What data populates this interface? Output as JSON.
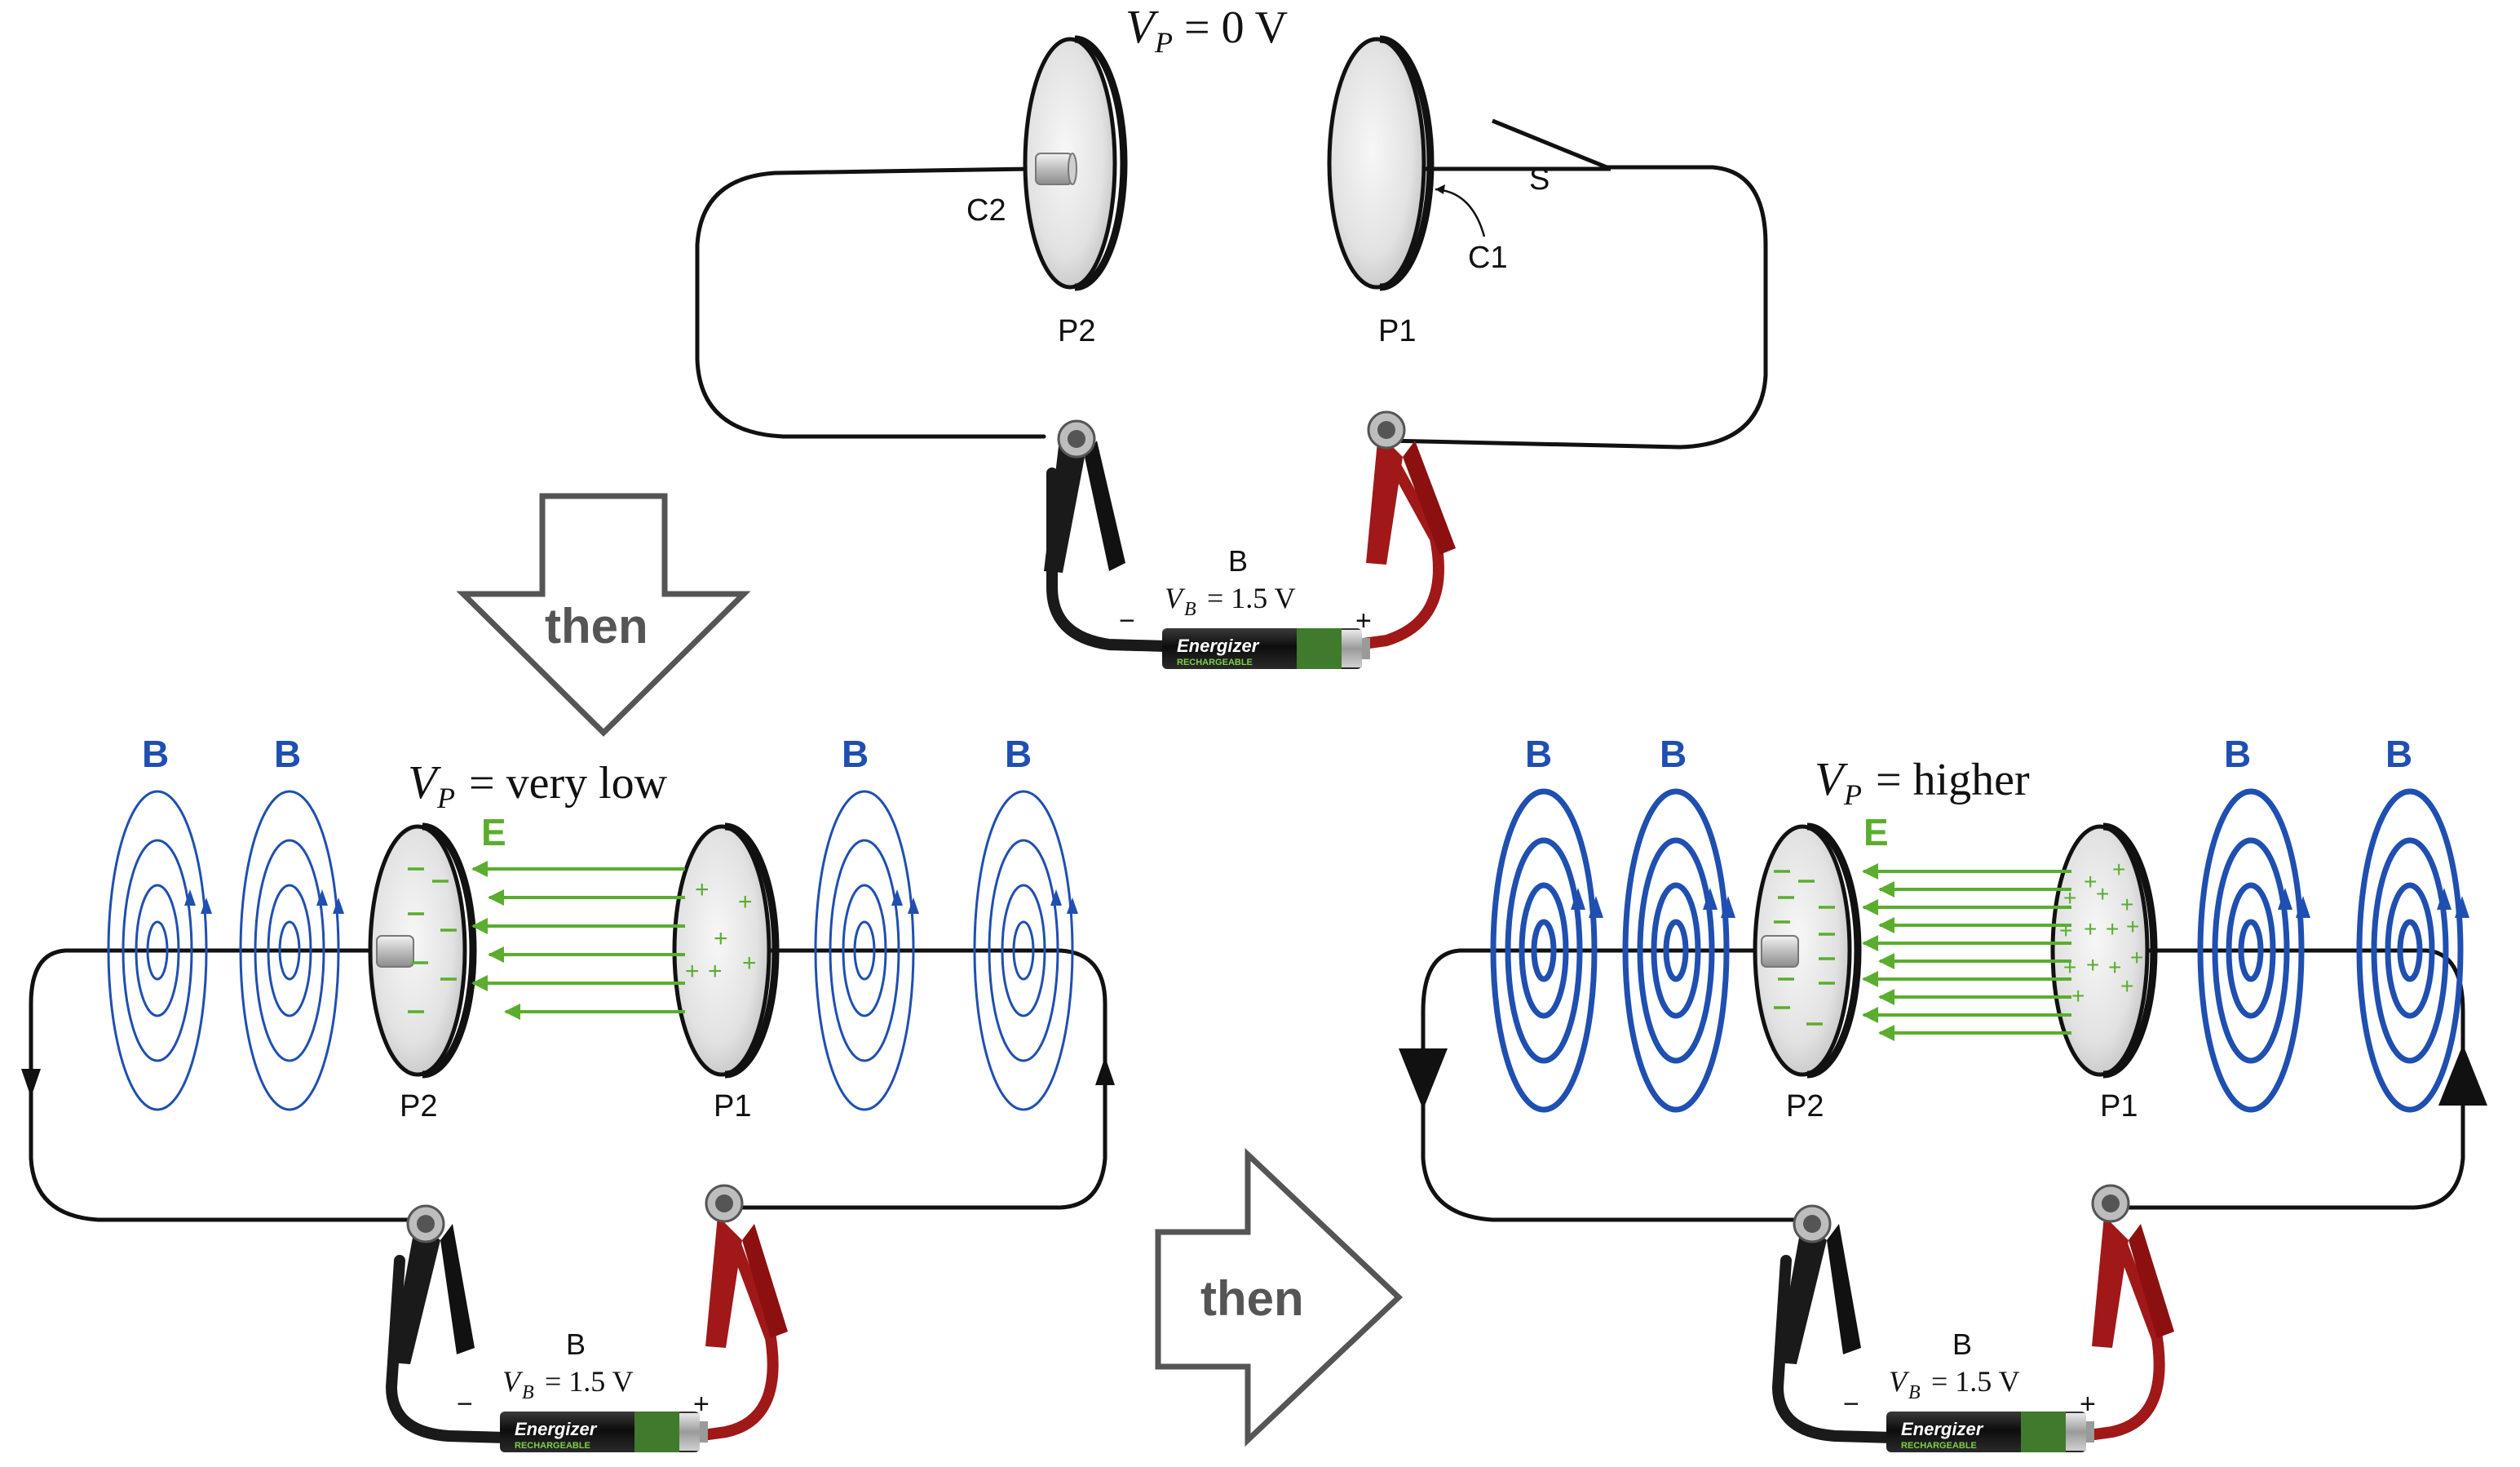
{
  "colors": {
    "field_e": "#5aad2e",
    "field_b": "#1f4fb0",
    "plate_fill": "#dcdcdc",
    "plate_edge": "#111111",
    "wire": "#111111",
    "red_lead": "#a01818",
    "black_lead": "#1a1a1a",
    "arrow_grey": "#555555"
  },
  "top_panel": {
    "vp_symbol": "V",
    "vp_sub": "P",
    "vp_value": "= 0 V",
    "plate_p2_label": "P2",
    "plate_p1_label": "P1",
    "contact_c2_label": "C2",
    "contact_c1_label": "C1",
    "switch_label": "S",
    "battery_label": "B",
    "vb_symbol": "V",
    "vb_sub": "B",
    "vb_value": "= 1.5 V",
    "minus_sign": "−",
    "plus_sign": "+",
    "battery_brand": "Energizer",
    "battery_sub": "RECHARGEABLE"
  },
  "arrow_down_label": "then",
  "arrow_right_label": "then",
  "left_panel": {
    "vp_symbol": "V",
    "vp_sub": "P",
    "vp_value": "=  very low",
    "e_label": "E",
    "b_labels": [
      "B",
      "B",
      "B",
      "B"
    ],
    "plate_p2_label": "P2",
    "plate_p1_label": "P1",
    "battery_label": "B",
    "vb_symbol": "V",
    "vb_sub": "B",
    "vb_value": "= 1.5 V",
    "minus_sign": "−",
    "plus_sign": "+",
    "battery_brand": "Energizer",
    "battery_sub": "RECHARGEABLE"
  },
  "right_panel": {
    "vp_symbol": "V",
    "vp_sub": "P",
    "vp_value": "=  higher",
    "e_label": "E",
    "b_labels": [
      "B",
      "B",
      "B",
      "B"
    ],
    "plate_p2_label": "P2",
    "plate_p1_label": "P1",
    "battery_label": "B",
    "vb_symbol": "V",
    "vb_sub": "B",
    "vb_value": "= 1.5 V",
    "minus_sign": "−",
    "plus_sign": "+",
    "battery_brand": "Energizer",
    "battery_sub": "RECHARGEABLE"
  },
  "icons": {
    "clip": "alligator-clip-icon",
    "battery": "aa-battery-icon",
    "switch": "knife-switch-icon"
  }
}
